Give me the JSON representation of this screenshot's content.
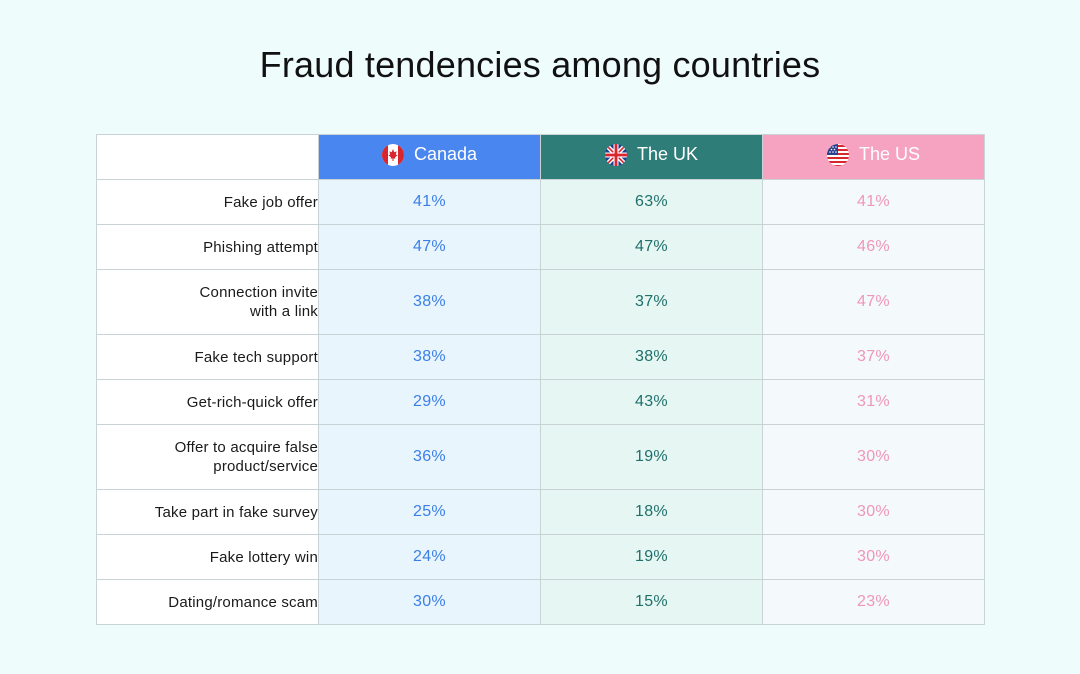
{
  "title": "Fraud tendencies among countries",
  "colors": {
    "canada": "#4a86f0",
    "uk": "#2f7d79",
    "us": "#f6a3c2",
    "background": "#effcfc"
  },
  "columns": [
    {
      "name": "Canada",
      "flag_icon": "canada-flag-icon"
    },
    {
      "name": "The UK",
      "flag_icon": "uk-flag-icon"
    },
    {
      "name": "The US",
      "flag_icon": "us-flag-icon"
    }
  ],
  "rows": [
    {
      "label": "Fake job offer",
      "values": [
        "41%",
        "63%",
        "41%"
      ]
    },
    {
      "label": "Phishing attempt",
      "values": [
        "47%",
        "47%",
        "46%"
      ]
    },
    {
      "label": "Connection invite\nwith a link",
      "values": [
        "38%",
        "37%",
        "47%"
      ]
    },
    {
      "label": "Fake tech support",
      "values": [
        "38%",
        "38%",
        "37%"
      ]
    },
    {
      "label": "Get-rich-quick offer",
      "values": [
        "29%",
        "43%",
        "31%"
      ]
    },
    {
      "label": "Offer to acquire false\nproduct/service",
      "values": [
        "36%",
        "19%",
        "30%"
      ]
    },
    {
      "label": "Take part in fake survey",
      "values": [
        "25%",
        "18%",
        "30%"
      ]
    },
    {
      "label": "Fake lottery win",
      "values": [
        "24%",
        "19%",
        "30%"
      ]
    },
    {
      "label": "Dating/romance scam",
      "values": [
        "30%",
        "15%",
        "23%"
      ]
    }
  ],
  "chart_data": {
    "type": "table",
    "title": "Fraud tendencies among countries",
    "columns": [
      "Canada",
      "The UK",
      "The US"
    ],
    "categories": [
      "Fake job offer",
      "Phishing attempt",
      "Connection invite with a link",
      "Fake tech support",
      "Get-rich-quick offer",
      "Offer to acquire false product/service",
      "Take part in fake survey",
      "Fake lottery win",
      "Dating/romance scam"
    ],
    "series": [
      {
        "name": "Canada",
        "values": [
          41,
          47,
          38,
          38,
          29,
          36,
          25,
          24,
          30
        ]
      },
      {
        "name": "The UK",
        "values": [
          63,
          47,
          37,
          38,
          43,
          19,
          18,
          19,
          15
        ]
      },
      {
        "name": "The US",
        "values": [
          41,
          46,
          47,
          37,
          31,
          30,
          30,
          30,
          23
        ]
      }
    ],
    "unit": "%"
  }
}
